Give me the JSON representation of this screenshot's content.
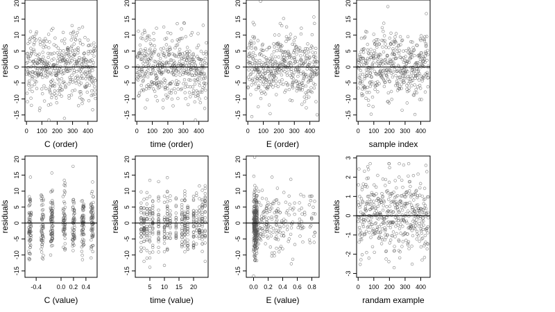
{
  "chart_data": [
    {
      "type": "scatter",
      "xlabel": "C (order)",
      "ylabel": "residuals",
      "x_ticks": [
        0,
        100,
        200,
        300,
        400
      ],
      "x_tick_labels": [
        "0",
        "100",
        "200",
        "300",
        "400"
      ],
      "xlim": [
        -10,
        460
      ],
      "y_ticks": [
        -15,
        -10,
        -5,
        0,
        5,
        10,
        15,
        20
      ],
      "y_tick_labels": [
        "-15",
        "-10",
        "-5",
        "0",
        "5",
        "10",
        "15",
        "20"
      ],
      "ylim": [
        -17,
        21
      ],
      "reference_line_y": 0,
      "n_points": 450,
      "x_kind": "order"
    },
    {
      "type": "scatter",
      "xlabel": "time (order)",
      "ylabel": "residuals",
      "x_ticks": [
        0,
        100,
        200,
        300,
        400
      ],
      "x_tick_labels": [
        "0",
        "100",
        "200",
        "300",
        "400"
      ],
      "xlim": [
        -10,
        460
      ],
      "y_ticks": [
        -15,
        -10,
        -5,
        0,
        5,
        10,
        15,
        20
      ],
      "y_tick_labels": [
        "-15",
        "-10",
        "-5",
        "0",
        "5",
        "10",
        "15",
        "20"
      ],
      "ylim": [
        -17,
        21
      ],
      "reference_line_y": 0,
      "n_points": 450,
      "x_kind": "order"
    },
    {
      "type": "scatter",
      "xlabel": "E (order)",
      "ylabel": "residuals",
      "x_ticks": [
        0,
        100,
        200,
        300,
        400
      ],
      "x_tick_labels": [
        "0",
        "100",
        "200",
        "300",
        "400"
      ],
      "xlim": [
        -10,
        460
      ],
      "y_ticks": [
        -15,
        -10,
        -5,
        0,
        5,
        10,
        15,
        20
      ],
      "y_tick_labels": [
        "-15",
        "-10",
        "-5",
        "0",
        "5",
        "10",
        "15",
        "20"
      ],
      "ylim": [
        -17,
        21
      ],
      "reference_line_y": 0,
      "n_points": 450,
      "x_kind": "order"
    },
    {
      "type": "scatter",
      "xlabel": "sample index",
      "ylabel": "residuals",
      "x_ticks": [
        0,
        100,
        200,
        300,
        400
      ],
      "x_tick_labels": [
        "0",
        "100",
        "200",
        "300",
        "400"
      ],
      "xlim": [
        -10,
        460
      ],
      "y_ticks": [
        -15,
        -10,
        -5,
        0,
        5,
        10,
        15,
        20
      ],
      "y_tick_labels": [
        "-15",
        "-10",
        "-5",
        "0",
        "5",
        "10",
        "15",
        "20"
      ],
      "ylim": [
        -17,
        21
      ],
      "reference_line_y": 0,
      "n_points": 450,
      "x_kind": "order"
    },
    {
      "type": "scatter",
      "xlabel": "C (value)",
      "ylabel": "residuals",
      "x_ticks": [
        -0.4,
        0.0,
        0.2,
        0.4
      ],
      "x_tick_labels": [
        "-0.4",
        "0.0",
        "0.2",
        "0.4"
      ],
      "xlim": [
        -0.58,
        0.58
      ],
      "y_ticks": [
        -15,
        -10,
        -5,
        0,
        5,
        10,
        15,
        20
      ],
      "y_tick_labels": [
        "-15",
        "-10",
        "-5",
        "0",
        "5",
        "10",
        "15",
        "20"
      ],
      "ylim": [
        -17,
        21
      ],
      "reference_line_y": 0,
      "n_points": 450,
      "x_kind": "C"
    },
    {
      "type": "scatter",
      "xlabel": "time (value)",
      "ylabel": "residuals",
      "x_ticks": [
        5,
        10,
        15,
        20
      ],
      "x_tick_labels": [
        "5",
        "10",
        "15",
        "20"
      ],
      "xlim": [
        0,
        25
      ],
      "y_ticks": [
        -15,
        -10,
        -5,
        0,
        5,
        10,
        15,
        20
      ],
      "y_tick_labels": [
        "-15",
        "-10",
        "-5",
        "0",
        "5",
        "10",
        "15",
        "20"
      ],
      "ylim": [
        -17,
        21
      ],
      "reference_line_y": 0,
      "n_points": 450,
      "x_kind": "time"
    },
    {
      "type": "scatter",
      "xlabel": "E (value)",
      "ylabel": "residuals",
      "x_ticks": [
        0.0,
        0.2,
        0.4,
        0.6,
        0.8
      ],
      "x_tick_labels": [
        "0.0",
        "0.2",
        "0.4",
        "0.6",
        "0.8"
      ],
      "xlim": [
        -0.1,
        0.9
      ],
      "y_ticks": [
        -15,
        -10,
        -5,
        0,
        5,
        10,
        15,
        20
      ],
      "y_tick_labels": [
        "-15",
        "-10",
        "-5",
        "0",
        "5",
        "10",
        "15",
        "20"
      ],
      "ylim": [
        -17,
        21
      ],
      "reference_line_y": 0,
      "n_points": 450,
      "x_kind": "E"
    },
    {
      "type": "scatter",
      "xlabel": "randam example",
      "ylabel": "residuals",
      "x_ticks": [
        0,
        100,
        200,
        300,
        400
      ],
      "x_tick_labels": [
        "0",
        "100",
        "200",
        "300",
        "400"
      ],
      "xlim": [
        -10,
        460
      ],
      "y_ticks": [
        -3,
        -2,
        -1,
        0,
        1,
        2,
        3
      ],
      "y_tick_labels": [
        "-3",
        "-2",
        "-1",
        "0",
        "1",
        "2",
        "3"
      ],
      "ylim": [
        -3.2,
        3.1
      ],
      "reference_line_y": 0,
      "n_points": 450,
      "x_kind": "random"
    }
  ],
  "style": {
    "point_color": "#555555",
    "axis_color": "#000000",
    "reference_line_color": "#000000"
  }
}
